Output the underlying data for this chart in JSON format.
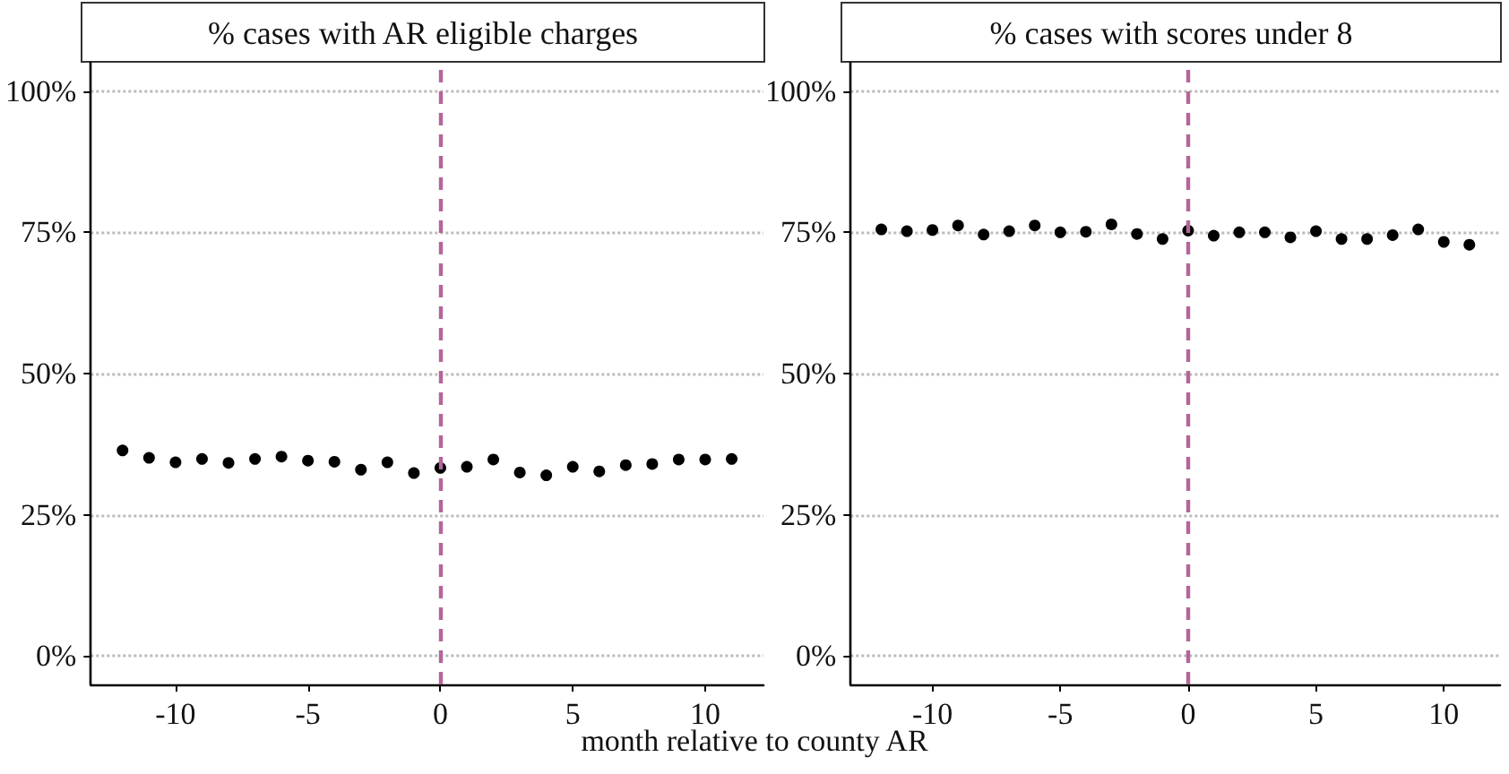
{
  "chart_data": [
    {
      "type": "scatter",
      "title": "% cases with AR eligible charges",
      "xlabel": "month relative to county AR",
      "x": [
        -12,
        -11,
        -10,
        -9,
        -8,
        -7,
        -6,
        -5,
        -4,
        -3,
        -2,
        -1,
        0,
        1,
        2,
        3,
        4,
        5,
        6,
        7,
        8,
        9,
        10,
        11
      ],
      "series": [
        {
          "color": "#000000",
          "values": [
            36.4,
            35.1,
            34.3,
            34.9,
            34.2,
            34.9,
            35.3,
            34.6,
            34.4,
            33.0,
            34.3,
            32.4,
            33.3,
            33.5,
            34.8,
            32.5,
            32.0,
            33.5,
            32.7,
            33.8,
            34.0,
            34.8,
            34.8,
            34.9
          ]
        }
      ],
      "xlim": [
        -13.2,
        12.2
      ],
      "xticks": [
        -10,
        -5,
        0,
        5,
        10
      ],
      "ylim": [
        -5,
        105
      ],
      "yticks": [
        {
          "value": 0,
          "label": "0%"
        },
        {
          "value": 25,
          "label": "25%"
        },
        {
          "value": 50,
          "label": "50%"
        },
        {
          "value": 75,
          "label": "75%"
        },
        {
          "value": 100,
          "label": "100%"
        }
      ],
      "ref_lines": [
        {
          "axis": "x",
          "value": 0,
          "color": "#b5659a",
          "line_style": "dashed"
        }
      ],
      "grid": "y",
      "marker": "circle"
    },
    {
      "type": "scatter",
      "title": "% cases with scores under 8",
      "x": [
        -12,
        -11,
        -10,
        -9,
        -8,
        -7,
        -6,
        -5,
        -4,
        -3,
        -2,
        -1,
        0,
        1,
        2,
        3,
        4,
        5,
        6,
        7,
        8,
        9,
        10,
        11
      ],
      "series": [
        {
          "color": "#000000",
          "values": [
            75.5,
            75.2,
            75.4,
            76.2,
            74.6,
            75.2,
            76.2,
            75.0,
            75.1,
            76.4,
            74.7,
            73.8,
            75.3,
            74.4,
            75.0,
            75.0,
            74.1,
            75.2,
            73.8,
            73.8,
            74.5,
            75.5,
            73.3,
            72.8
          ]
        }
      ],
      "xlim": [
        -13.2,
        12.2
      ],
      "xticks": [
        -10,
        -5,
        0,
        5,
        10
      ],
      "ylim": [
        -5,
        105
      ],
      "yticks": [
        {
          "value": 0,
          "label": "0%"
        },
        {
          "value": 25,
          "label": "25%"
        },
        {
          "value": 50,
          "label": "50%"
        },
        {
          "value": 75,
          "label": "75%"
        },
        {
          "value": 100,
          "label": "100%"
        }
      ],
      "ref_lines": [
        {
          "axis": "x",
          "value": 0,
          "color": "#b5659a",
          "line_style": "dashed"
        }
      ],
      "grid": "y",
      "marker": "circle"
    }
  ]
}
